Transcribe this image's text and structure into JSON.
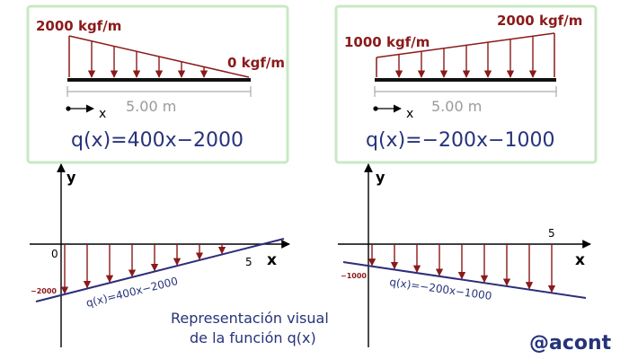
{
  "panels": [
    {
      "load_left": "2000 kgf/m",
      "load_right": "0 kgf/m",
      "axis_x": "x",
      "span": "5.00 m",
      "equation": "q(x)=400x−2000"
    },
    {
      "load_left": "1000 kgf/m",
      "load_right": "2000 kgf/m",
      "axis_x": "x",
      "span": "5.00 m",
      "equation": "q(x)=−200x−1000"
    }
  ],
  "graphs": [
    {
      "y_label": "y",
      "x_label": "x",
      "origin_label": "0",
      "tick_label": "5",
      "y_intercept_label": "−2000",
      "line_label": "q(x)=400x−2000"
    },
    {
      "y_label": "y",
      "x_label": "x",
      "tick_label": "5",
      "y_intercept_label": "−1000",
      "line_label": "q(x)=−200x−1000"
    }
  ],
  "caption_line1": "Representación visual",
  "caption_line2": "de la función q(x)",
  "signature": "@acont",
  "colors": {
    "box_border": "#c9e8c4",
    "load": "#8b1a1a",
    "equation": "#26337a",
    "line": "#2d2d7a",
    "axis": "#000000",
    "dimension": "#9a9a9a"
  }
}
